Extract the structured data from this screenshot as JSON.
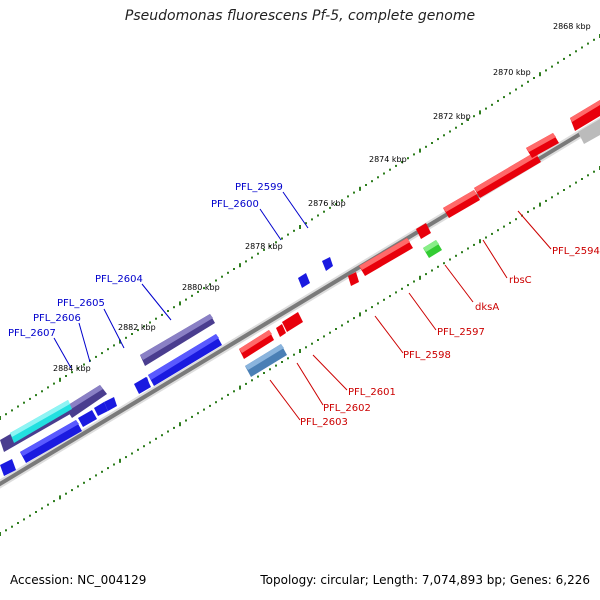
{
  "title": "Pseudomonas fluorescens Pf-5, complete genome",
  "footer": {
    "accession": "Accession: NC_004129",
    "topology": "Topology: circular; Length: 7,074,893 bp; Genes: 6,226"
  },
  "colors": {
    "backbone": "#888888",
    "tick": "#2e7d1e",
    "forward_label": "#0000cc",
    "reverse_label": "#cc0000",
    "red_gene": "#e8000b",
    "blue_gene": "#1a1ae0",
    "purple_gene": "#4a3d8f",
    "cyan_gene": "#22e0e0",
    "green_gene": "#33cc33",
    "steel_gene": "#4a7fb5",
    "grey_gene": "#bbbbbb"
  },
  "scale": {
    "unit": "kbp",
    "ticks": [
      "2868 kbp",
      "2870 kbp",
      "2872 kbp",
      "2874 kbp",
      "2876 kbp",
      "2878 kbp",
      "2880 kbp",
      "2882 kbp",
      "2884 kbp"
    ]
  },
  "forward_labels": [
    "PFL_2599",
    "PFL_2600",
    "PFL_2604",
    "PFL_2605",
    "PFL_2606",
    "PFL_2607"
  ],
  "reverse_labels": [
    "PFL_2594",
    "rbsC",
    "dksA",
    "PFL_2597",
    "PFL_2598",
    "PFL_2601",
    "PFL_2602",
    "PFL_2603"
  ]
}
